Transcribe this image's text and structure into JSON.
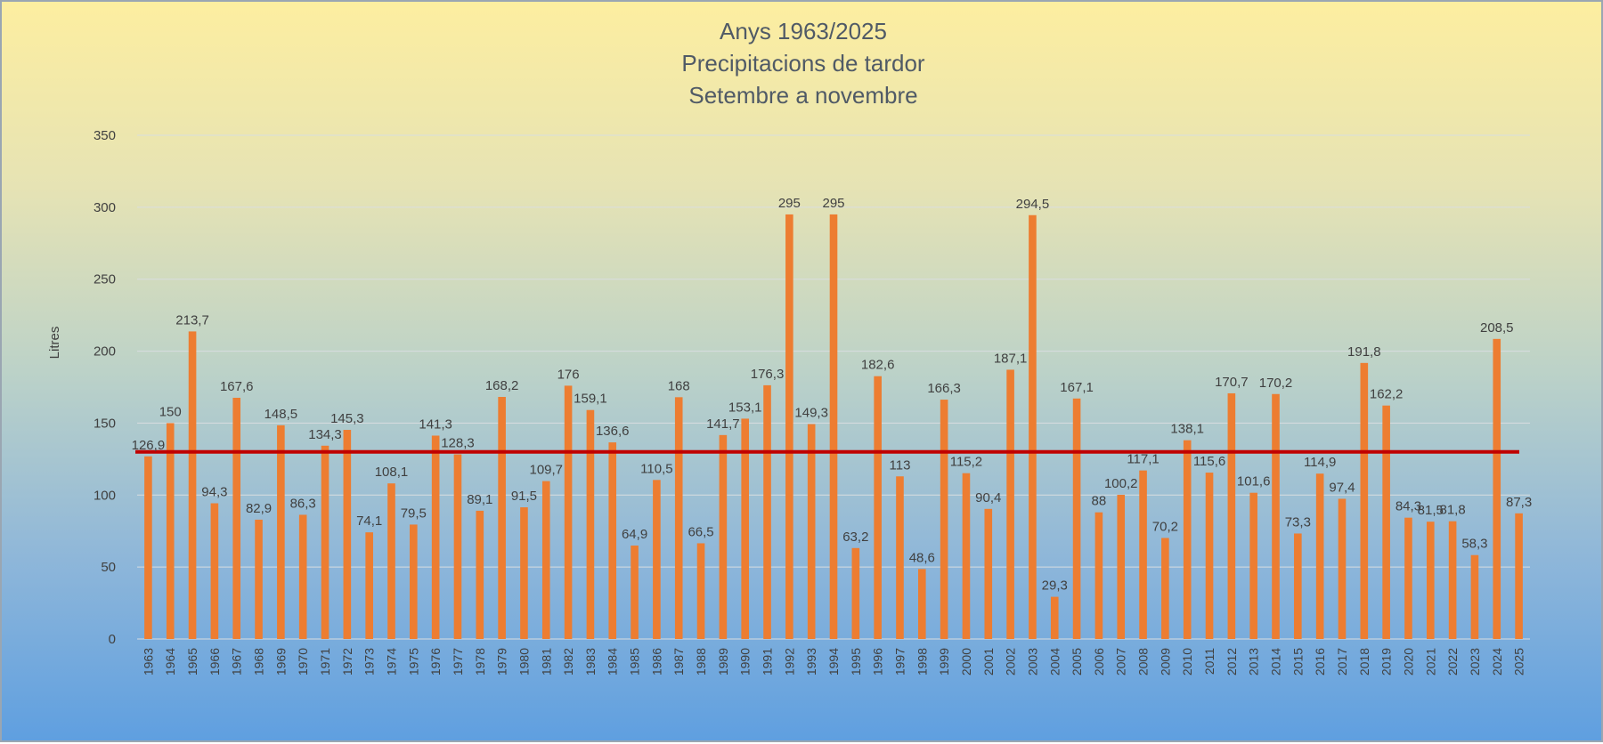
{
  "chart_data": {
    "type": "bar",
    "title": [
      "Anys 1963/2025",
      "Precipitacions de tardor",
      "Setembre a novembre"
    ],
    "ylabel": "Litres",
    "xlabel": "",
    "ylim": [
      0,
      350
    ],
    "yticks": [
      0,
      50,
      100,
      150,
      200,
      250,
      300,
      350
    ],
    "grid": true,
    "legend": "none",
    "reference_line": 130,
    "colors": {
      "bar": "#ed7d31",
      "reference_line": "#c00000",
      "grid": "#d9dde0",
      "text": "#404040"
    },
    "categories": [
      "1963",
      "1964",
      "1965",
      "1966",
      "1967",
      "1968",
      "1969",
      "1970",
      "1971",
      "1972",
      "1973",
      "1974",
      "1975",
      "1976",
      "1977",
      "1978",
      "1979",
      "1980",
      "1981",
      "1982",
      "1983",
      "1984",
      "1985",
      "1986",
      "1987",
      "1988",
      "1989",
      "1990",
      "1991",
      "1992",
      "1993",
      "1994",
      "1995",
      "1996",
      "1997",
      "1998",
      "1999",
      "2000",
      "2001",
      "2002",
      "2003",
      "2004",
      "2005",
      "2006",
      "2007",
      "2008",
      "2009",
      "2010",
      "2011",
      "2012",
      "2013",
      "2014",
      "2015",
      "2016",
      "2017",
      "2018",
      "2019",
      "2020",
      "2021",
      "2022",
      "2023",
      "2024",
      "2025"
    ],
    "values": [
      126.9,
      150,
      213.7,
      94.3,
      167.6,
      82.9,
      148.5,
      86.3,
      134.3,
      145.3,
      74.1,
      108.1,
      79.5,
      141.3,
      128.3,
      89.1,
      168.2,
      91.5,
      109.7,
      176,
      159.1,
      136.6,
      64.9,
      110.5,
      168,
      66.5,
      141.7,
      153.1,
      176.3,
      295,
      149.3,
      295,
      63.2,
      182.6,
      113,
      48.6,
      166.3,
      115.2,
      90.4,
      187.1,
      294.5,
      29.3,
      167.1,
      88,
      100.2,
      117.1,
      70.2,
      138.1,
      115.6,
      170.7,
      101.6,
      170.2,
      73.3,
      114.9,
      97.4,
      191.8,
      162.2,
      84.3,
      81.5,
      81.8,
      58.3,
      208.5,
      87.3
    ],
    "labels": [
      "126,9",
      "150",
      "213,7",
      "94,3",
      "167,6",
      "82,9",
      "148,5",
      "86,3",
      "134,3",
      "145,3",
      "74,1",
      "108,1",
      "79,5",
      "141,3",
      "128,3",
      "89,1",
      "168,2",
      "91,5",
      "109,7",
      "176",
      "159,1",
      "136,6",
      "64,9",
      "110,5",
      "168",
      "66,5",
      "141,7",
      "153,1",
      "176,3",
      "295",
      "149,3",
      "295",
      "63,2",
      "182,6",
      "113",
      "48,6",
      "166,3",
      "115,2",
      "90,4",
      "187,1",
      "294,5",
      "29,3",
      "167,1",
      "88",
      "100,2",
      "117,1",
      "70,2",
      "138,1",
      "115,6",
      "170,7",
      "101,6",
      "170,2",
      "73,3",
      "114,9",
      "97,4",
      "191,8",
      "162,2",
      "84,3",
      "81,5",
      "81,8",
      "58,3",
      "208,5",
      "87,3"
    ]
  }
}
